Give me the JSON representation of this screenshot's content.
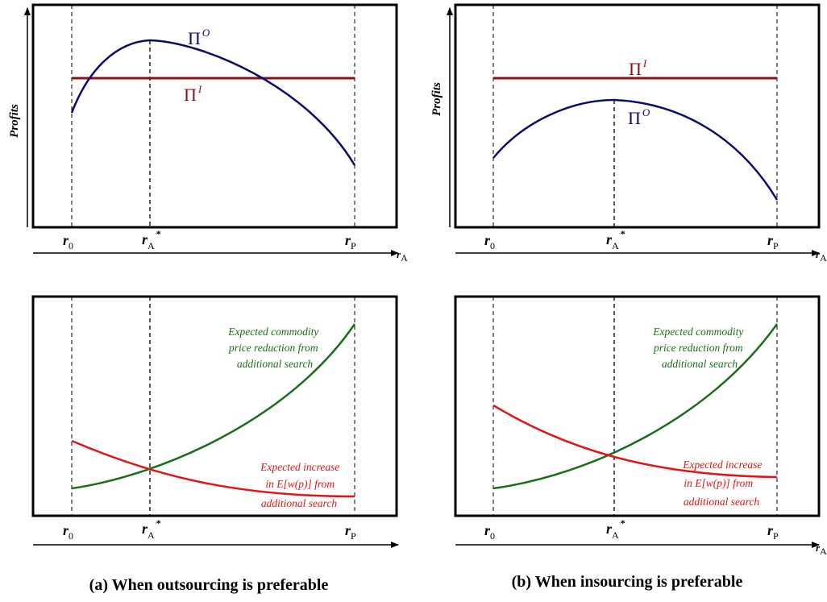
{
  "colors": {
    "pi_o": "#0b0b6e",
    "pi_i": "#8b1212",
    "green": "#1a6e1a",
    "red": "#e01515",
    "axis": "#000000"
  },
  "labels": {
    "profits": "Profits",
    "r0_main": "r",
    "r0_sub": "0",
    "rA_main": "r",
    "rA_sub": "A",
    "rA_sup": "*",
    "rP_main": "r",
    "rP_sub": "P",
    "axis_var_main": "r",
    "axis_var_sub": "A",
    "pi": "Π",
    "pi_o_sup": "O",
    "pi_i_sup": "I"
  },
  "panel_a": {
    "caption": "(a) When outsourcing is preferable",
    "green_note": [
      "Expected commodity",
      "price reduction from",
      "additional search"
    ],
    "red_note": [
      "Expected increase",
      "in E[w(p)] from",
      "additional search"
    ]
  },
  "panel_b": {
    "caption": "(b) When insourcing is preferable",
    "green_note": [
      "Expected commodity",
      "price reduction from",
      "additional search"
    ],
    "red_note": [
      "Expected increase",
      "in E[w(p)] from",
      "additional search"
    ]
  }
}
